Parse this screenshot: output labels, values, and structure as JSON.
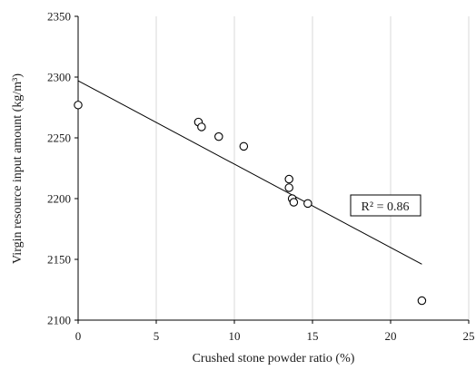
{
  "chart_data": {
    "type": "scatter",
    "title": "",
    "xlabel": "Crushed stone powder ratio (%)",
    "ylabel": "Virgin resource input amount (kg/m³)",
    "xlim": [
      0,
      25
    ],
    "ylim": [
      2100,
      2350
    ],
    "xticks": [
      0,
      5,
      10,
      15,
      20,
      25
    ],
    "yticks": [
      2100,
      2150,
      2200,
      2250,
      2300,
      2350
    ],
    "grid": "vertical",
    "series": [
      {
        "points": [
          {
            "x": 0,
            "y": 2277
          },
          {
            "x": 7.7,
            "y": 2263
          },
          {
            "x": 7.9,
            "y": 2259
          },
          {
            "x": 9.0,
            "y": 2251
          },
          {
            "x": 10.6,
            "y": 2243
          },
          {
            "x": 13.5,
            "y": 2216
          },
          {
            "x": 13.5,
            "y": 2209
          },
          {
            "x": 13.7,
            "y": 2200
          },
          {
            "x": 13.8,
            "y": 2197
          },
          {
            "x": 14.7,
            "y": 2196
          },
          {
            "x": 22.0,
            "y": 2116
          }
        ]
      }
    ],
    "trendline": {
      "x_start": 0,
      "y_start": 2297,
      "x_end": 22,
      "y_end": 2146
    },
    "annotation": "R² = 0.86"
  },
  "colors": {
    "marker": "#000000",
    "trendline": "#000000",
    "grid": "#d9d9d9",
    "axis": "#000000"
  }
}
